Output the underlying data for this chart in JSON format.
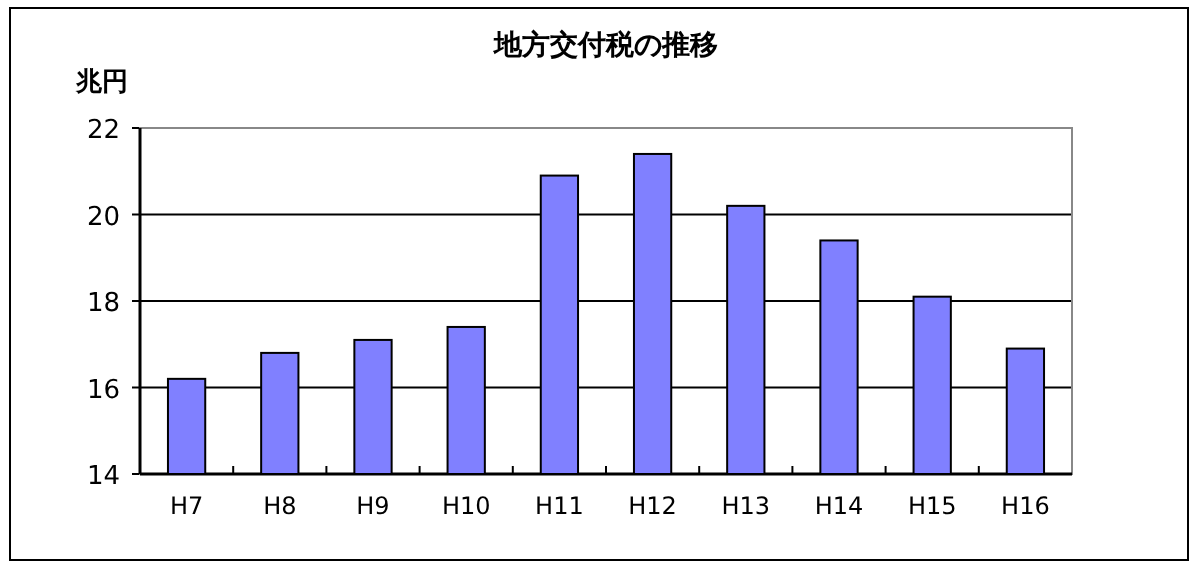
{
  "chart_data": {
    "type": "bar",
    "title": "地方交付税の推移",
    "ylabel": "兆円",
    "categories": [
      "H7",
      "H8",
      "H9",
      "H10",
      "H11",
      "H12",
      "H13",
      "H14",
      "H15",
      "H16"
    ],
    "values": [
      16.2,
      16.8,
      17.1,
      17.4,
      20.9,
      21.4,
      20.2,
      19.4,
      18.1,
      16.9
    ],
    "color": "#8080ff",
    "ylim": [
      14,
      22
    ],
    "yticks": [
      14,
      16,
      18,
      20,
      22
    ],
    "grid": "y"
  }
}
